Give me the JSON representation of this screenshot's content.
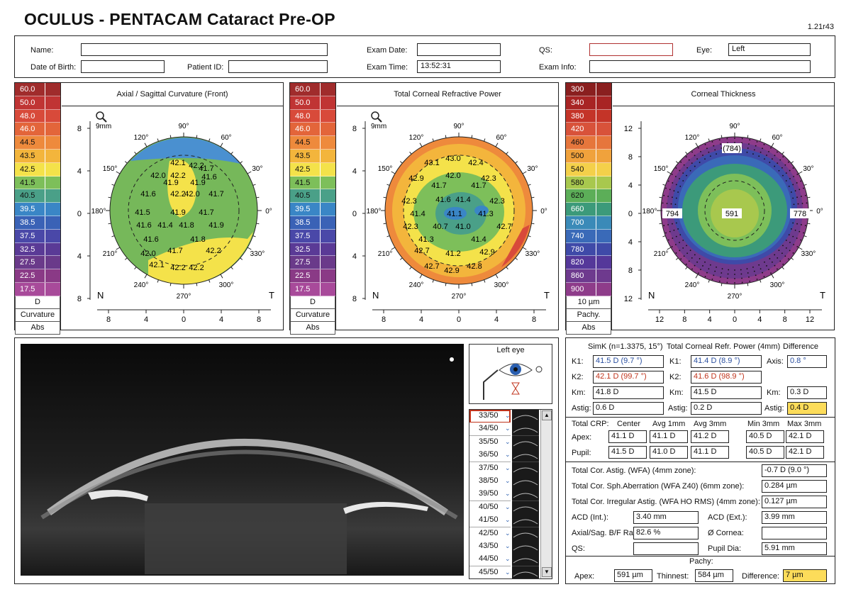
{
  "header": {
    "title": "OCULUS  -  PENTACAM   Cataract Pre-OP",
    "version": "1.21r43"
  },
  "patient": {
    "name_label": "Name:",
    "name_value": "",
    "dob_label": "Date of Birth:",
    "dob_value": "",
    "pid_label": "Patient ID:",
    "pid_value": "",
    "exam_date_label": "Exam Date:",
    "exam_date_value": "",
    "exam_time_label": "Exam Time:",
    "exam_time_value": "13:52:31",
    "qs_label": "QS:",
    "qs_value": "",
    "exam_info_label": "Exam Info:",
    "exam_info_value": "",
    "eye_label": "Eye:",
    "eye_value": "Left"
  },
  "maps": [
    {
      "title": "Axial / Sagittal Curvature (Front)",
      "scale": [
        "60.0",
        "50.0",
        "48.0",
        "46.0",
        "44.5",
        "43.5",
        "42.5",
        "41.5",
        "40.5",
        "39.5",
        "38.5",
        "37.5",
        "32.5",
        "27.5",
        "22.5",
        "17.5"
      ],
      "scale_colors": [
        "#a02c2c",
        "#c03434",
        "#d84a3a",
        "#e3653a",
        "#ee8a3c",
        "#f3b53c",
        "#f4e24a",
        "#7dbf5a",
        "#4aa088",
        "#3a86c6",
        "#3a62b6",
        "#4a48a8",
        "#5a3a96",
        "#6a3a8a",
        "#8a3a86",
        "#a84a9a"
      ],
      "caps": [
        "D",
        "Curvature",
        "Abs"
      ],
      "n": "N",
      "t": "T",
      "axis": [
        "8",
        "4",
        "0",
        "4",
        "8"
      ],
      "vaxis": [
        "8",
        "4",
        "0",
        "4",
        "8"
      ],
      "mag": "9mm",
      "vals": [
        "42.1",
        "42.2",
        "41.7",
        "42.0",
        "42.2",
        "41.6",
        "41.9",
        "41.9",
        "41.6",
        "42.2",
        "42.0",
        "41.7",
        "41.5",
        "41.9",
        "41.7",
        "41.6",
        "41.4",
        "41.8",
        "41.9",
        "41.6",
        "41.8",
        "42.0",
        "41.7",
        "42.2",
        "42.1",
        "42.2",
        "42.2"
      ]
    },
    {
      "title": "Total Corneal Refractive Power",
      "scale": [
        "60.0",
        "50.0",
        "48.0",
        "46.0",
        "44.5",
        "43.5",
        "42.5",
        "41.5",
        "40.5",
        "39.5",
        "38.5",
        "37.5",
        "32.5",
        "27.5",
        "22.5",
        "17.5"
      ],
      "caps": [
        "D",
        "Curvature",
        "Abs"
      ],
      "n": "N",
      "t": "T",
      "axis": [
        "8",
        "4",
        "0",
        "4",
        "8"
      ],
      "vaxis": [
        "8",
        "4",
        "0",
        "4",
        "8"
      ],
      "mag": "9mm",
      "vals": [
        "43.0",
        "43.1",
        "42.4",
        "42.9",
        "42.0",
        "42.3",
        "41.7",
        "41.7",
        "42.3",
        "41.6",
        "41.4",
        "42.3",
        "41.4",
        "41.1",
        "41.3",
        "42.3",
        "40.7",
        "41.0",
        "42.7",
        "41.3",
        "41.4",
        "42.7",
        "41.2",
        "42.9",
        "42.7",
        "42.9",
        "42.8"
      ]
    },
    {
      "title": "Corneal Thickness",
      "scale": [
        "300",
        "340",
        "380",
        "420",
        "460",
        "500",
        "540",
        "580",
        "620",
        "660",
        "700",
        "740",
        "780",
        "820",
        "860",
        "900"
      ],
      "scale_colors": [
        "#8a1f1f",
        "#a82424",
        "#c43428",
        "#d8523a",
        "#e6763c",
        "#f0a23c",
        "#f4d04a",
        "#a8c84e",
        "#5cae58",
        "#3c9a7a",
        "#3a8ab8",
        "#3a6ab8",
        "#3f4aa8",
        "#55389a",
        "#6e3a8e",
        "#8e3c8a"
      ],
      "caps": [
        "10 µm",
        "Pachy.",
        "Abs"
      ],
      "n": "N",
      "t": "T",
      "axis": [
        "12",
        "8",
        "4",
        "0",
        "4",
        "8",
        "12"
      ],
      "vaxis": [
        "12",
        "8",
        "4",
        "0",
        "4",
        "8",
        "12"
      ],
      "vals": [
        "(784)",
        "794",
        "591",
        "778"
      ]
    }
  ],
  "angles": [
    "90°",
    "60°",
    "30°",
    "0°",
    "330°",
    "300°",
    "270°",
    "240°",
    "210°",
    "180°",
    "150°",
    "120°"
  ],
  "scheimpflug": {
    "left_eye": "Left eye",
    "slices": [
      "33/50",
      "34/50",
      "35/50",
      "36/50",
      "37/50",
      "38/50",
      "39/50",
      "40/50",
      "41/50",
      "42/50",
      "43/50",
      "44/50",
      "45/50"
    ]
  },
  "simk": {
    "h_simk": "SimK (n=1.3375, 15°)",
    "h_tcrp": "Total Corneal Refr. Power (4mm)",
    "h_diff": "Difference",
    "k1": "K1:",
    "k1_simk": "41.5 D (9.7 °)",
    "k1_tcrp": "41.4 D (8.9 °)",
    "axis_label": "Axis:",
    "axis_val": "0.8 °",
    "k2": "K2:",
    "k2_simk": "42.1 D (99.7 °)",
    "k2_tcrp": "41.6 D (98.9 °)",
    "km": "Km:",
    "km_simk": "41.8 D",
    "km_tcrp": "41.5 D",
    "km_diff": "0.3 D",
    "astig": "Astig:",
    "astig_simk": "0.6 D",
    "astig_tcrp": "0.2 D",
    "astig_diff": "0.4 D"
  },
  "crp": {
    "h": [
      "Total CRP:",
      "Center",
      "Avg 1mm",
      "Avg 3mm",
      "Min 3mm",
      "Max 3mm"
    ],
    "apex_label": "Apex:",
    "apex": [
      "41.1 D",
      "41.1 D",
      "41.2 D",
      "40.5 D",
      "42.1 D"
    ],
    "pupil_label": "Pupil:",
    "pupil": [
      "41.5 D",
      "41.0 D",
      "41.1 D",
      "40.5 D",
      "42.1 D"
    ]
  },
  "other": {
    "astig_wfa": "Total Cor. Astig. (WFA) (4mm zone):",
    "astig_wfa_v": "-0.7 D (9.0 °)",
    "sph_ab": "Total Cor. Sph.Aberration (WFA Z40) (6mm zone):",
    "sph_ab_v": "0.284 µm",
    "irreg": "Total Cor. Irregular Astig. (WFA HO RMS) (4mm zone):",
    "irreg_v": "0.127 µm",
    "acd_int": "ACD (Int.):",
    "acd_int_v": "3.40 mm",
    "acd_ext": "ACD (Ext.):",
    "acd_ext_v": "3.99 mm",
    "axial_bf": "Axial/Sag. B/F Ra",
    "axial_bf_v": "82.6 %",
    "cornea": "Ø Cornea:",
    "cornea_v": "",
    "qs": "QS:",
    "qs_v": "",
    "pupil_dia": "Pupil Dia:",
    "pupil_dia_v": "5.91 mm"
  },
  "pachy": {
    "title": "Pachy:",
    "apex": "Apex:",
    "apex_v": "591 µm",
    "thinnest": "Thinnest:",
    "thinnest_v": "584 µm",
    "diff": "Difference:",
    "diff_v": "7 µm"
  }
}
